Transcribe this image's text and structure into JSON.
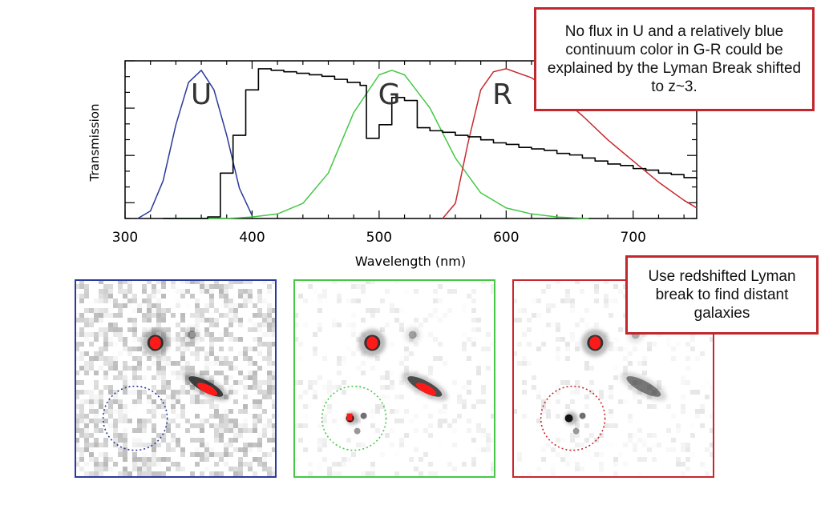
{
  "colors": {
    "u_band": "#2a3a9a",
    "g_band": "#46c846",
    "r_band": "#c8282d",
    "spectrum": "#000000",
    "callout_border": "#c1272d",
    "source_core": "#ff1a1a"
  },
  "callouts": {
    "lyman_break_note": "No flux in U and a relatively blue continuum color in G-R could be explained by the Lyman Break shifted to z~3.",
    "method_note": "Use redshifted Lyman break to find distant galaxies"
  },
  "chart_data": {
    "type": "line",
    "title": "",
    "xlabel": "Wavelength (nm)",
    "ylabel": "Transmission",
    "xlim": [
      300,
      750
    ],
    "ylim": [
      0,
      1.0
    ],
    "x_ticks": [
      300,
      400,
      500,
      600,
      700
    ],
    "band_labels": [
      "U",
      "G",
      "R"
    ],
    "grid": false,
    "series": [
      {
        "name": "U",
        "color": "#2a3a9a",
        "x": [
          310,
          320,
          330,
          340,
          350,
          360,
          370,
          380,
          390,
          400
        ],
        "y": [
          0.0,
          0.05,
          0.25,
          0.62,
          0.9,
          0.98,
          0.85,
          0.55,
          0.2,
          0.02
        ]
      },
      {
        "name": "G",
        "color": "#46c846",
        "x": [
          335,
          360,
          380,
          400,
          420,
          440,
          460,
          480,
          500,
          510,
          520,
          540,
          560,
          580,
          600,
          620,
          640,
          665
        ],
        "y": [
          0.0,
          0.0,
          0.0,
          0.01,
          0.03,
          0.1,
          0.3,
          0.7,
          0.95,
          0.98,
          0.95,
          0.73,
          0.4,
          0.17,
          0.07,
          0.03,
          0.01,
          0.0
        ]
      },
      {
        "name": "R",
        "color": "#c8282d",
        "x": [
          550,
          560,
          570,
          580,
          590,
          600,
          620,
          640,
          660,
          680,
          700,
          720,
          740,
          750
        ],
        "y": [
          0.0,
          0.1,
          0.5,
          0.85,
          0.97,
          0.99,
          0.93,
          0.82,
          0.68,
          0.52,
          0.38,
          0.24,
          0.12,
          0.07
        ]
      },
      {
        "name": "",
        "style": "step",
        "color": "#000000",
        "x": [
          330,
          350,
          365,
          375,
          385,
          395,
          405,
          415,
          425,
          435,
          445,
          455,
          465,
          475,
          485,
          490,
          500,
          510,
          520,
          530,
          540,
          550,
          560,
          570,
          580,
          590,
          600,
          610,
          620,
          630,
          640,
          650,
          660,
          670,
          680,
          690,
          700,
          710,
          720,
          730,
          740,
          750
        ],
        "y": [
          0.0,
          0.0,
          0.01,
          0.3,
          0.55,
          0.85,
          0.99,
          0.98,
          0.97,
          0.96,
          0.95,
          0.94,
          0.92,
          0.9,
          0.88,
          0.53,
          0.62,
          0.8,
          0.78,
          0.6,
          0.58,
          0.57,
          0.55,
          0.54,
          0.52,
          0.5,
          0.49,
          0.47,
          0.46,
          0.45,
          0.43,
          0.42,
          0.4,
          0.38,
          0.36,
          0.35,
          0.33,
          0.32,
          0.3,
          0.29,
          0.27,
          0.26
        ]
      }
    ]
  },
  "image_panels": [
    {
      "band": "U",
      "border_color": "#2a3a9a",
      "noise": "high",
      "circle_source": false,
      "sources": [
        {
          "u": 0.4,
          "v": 0.32,
          "strength": 1.0,
          "core": true
        },
        {
          "u": 0.58,
          "v": 0.28,
          "strength": 0.45,
          "core": false
        },
        {
          "u": 0.65,
          "v": 0.54,
          "strength": 1.0,
          "core": true,
          "elongated": true
        }
      ]
    },
    {
      "band": "G",
      "border_color": "#46c846",
      "noise": "low",
      "circle_source": true,
      "sources": [
        {
          "u": 0.39,
          "v": 0.32,
          "strength": 1.0,
          "core": true
        },
        {
          "u": 0.59,
          "v": 0.28,
          "strength": 0.4,
          "core": false
        },
        {
          "u": 0.65,
          "v": 0.54,
          "strength": 0.9,
          "core": true,
          "elongated": true
        }
      ]
    },
    {
      "band": "R",
      "border_color": "#c8282d",
      "noise": "low",
      "circle_source": true,
      "sources": [
        {
          "u": 0.41,
          "v": 0.32,
          "strength": 1.0,
          "core": true
        },
        {
          "u": 0.61,
          "v": 0.28,
          "strength": 0.35,
          "core": false
        },
        {
          "u": 0.65,
          "v": 0.54,
          "strength": 0.65,
          "core": false,
          "elongated": true
        }
      ]
    }
  ]
}
